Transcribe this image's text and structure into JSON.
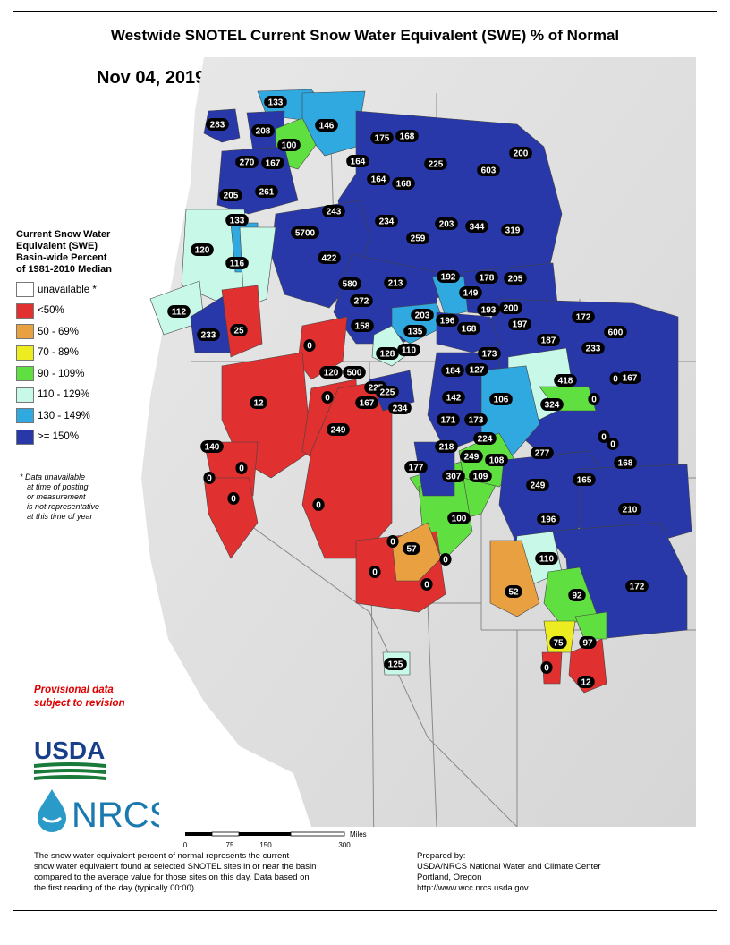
{
  "title": "Westwide SNOTEL Current Snow Water Equivalent (SWE) % of Normal",
  "date": "Nov 04, 2019",
  "legend": {
    "title_lines": [
      "Current Snow Water",
      "Equivalent (SWE)",
      "Basin-wide Percent",
      "of 1981-2010 Median"
    ],
    "items": [
      {
        "label": "unavailable *",
        "color": "#ffffff"
      },
      {
        "label": "<50%",
        "color": "#e03030"
      },
      {
        "label": "50 - 69%",
        "color": "#e8a040"
      },
      {
        "label": "70 - 89%",
        "color": "#ecec20"
      },
      {
        "label": "90 - 109%",
        "color": "#60e040"
      },
      {
        "label": "110 - 129%",
        "color": "#c8f8e8"
      },
      {
        "label": "130 - 149%",
        "color": "#30a8e0"
      },
      {
        "label": ">= 150%",
        "color": "#2838a8"
      }
    ]
  },
  "note_lines": [
    "*  Data unavailable",
    "at time of posting",
    "or measurement",
    "is not representative",
    "at this time of year"
  ],
  "provisional_lines": [
    "Provisional data",
    "subject to revision"
  ],
  "logos": {
    "usda": "USDA",
    "nrcs": "NRCS"
  },
  "scale": {
    "unit": "Miles",
    "ticks": [
      "0",
      "75",
      "150",
      "300"
    ]
  },
  "footnote_lines": [
    "The snow water equivalent percent of normal represents the current",
    "snow water equivalent found at selected SNOTEL sites in or near the basin",
    "compared to the average value for those sites on this day. Data based on",
    "the first reading of the day (typically 00:00)."
  ],
  "prepared_lines": [
    "Prepared by:",
    "USDA/NRCS National Water and Climate Center",
    "Portland, Oregon",
    "http://www.wcc.nrcs.usda.gov"
  ],
  "basins": [
    {
      "value": "283",
      "cls": 7
    },
    {
      "value": "133",
      "cls": 6
    },
    {
      "value": "146",
      "cls": 6
    },
    {
      "value": "208",
      "cls": 7
    },
    {
      "value": "100",
      "cls": 4
    },
    {
      "value": "175",
      "cls": 7
    },
    {
      "value": "168",
      "cls": 7
    },
    {
      "value": "270",
      "cls": 7
    },
    {
      "value": "167",
      "cls": 7
    },
    {
      "value": "164",
      "cls": 7
    },
    {
      "value": "225",
      "cls": 7
    },
    {
      "value": "603",
      "cls": 7
    },
    {
      "value": "200",
      "cls": 7
    },
    {
      "value": "205",
      "cls": 7
    },
    {
      "value": "261",
      "cls": 7
    },
    {
      "value": "164",
      "cls": 7
    },
    {
      "value": "168",
      "cls": 7
    },
    {
      "value": "133",
      "cls": 6
    },
    {
      "value": "243",
      "cls": 7
    },
    {
      "value": "234",
      "cls": 7
    },
    {
      "value": "203",
      "cls": 7
    },
    {
      "value": "344",
      "cls": 7
    },
    {
      "value": "319",
      "cls": 7
    },
    {
      "value": "120",
      "cls": 5
    },
    {
      "value": "5700",
      "cls": 7
    },
    {
      "value": "259",
      "cls": 7
    },
    {
      "value": "116",
      "cls": 5
    },
    {
      "value": "422",
      "cls": 7
    },
    {
      "value": "192",
      "cls": 7
    },
    {
      "value": "178",
      "cls": 7
    },
    {
      "value": "205",
      "cls": 7
    },
    {
      "value": "580",
      "cls": 7
    },
    {
      "value": "213",
      "cls": 7
    },
    {
      "value": "149",
      "cls": 6
    },
    {
      "value": "272",
      "cls": 7
    },
    {
      "value": "200",
      "cls": 7
    },
    {
      "value": "193",
      "cls": 7
    },
    {
      "value": "112",
      "cls": 5
    },
    {
      "value": "203",
      "cls": 7
    },
    {
      "value": "196",
      "cls": 7
    },
    {
      "value": "197",
      "cls": 7
    },
    {
      "value": "172",
      "cls": 7
    },
    {
      "value": "158",
      "cls": 7
    },
    {
      "value": "233",
      "cls": 7
    },
    {
      "value": "25",
      "cls": 1
    },
    {
      "value": "135",
      "cls": 6
    },
    {
      "value": "168",
      "cls": 7
    },
    {
      "value": "187",
      "cls": 7
    },
    {
      "value": "600",
      "cls": 7
    },
    {
      "value": "0",
      "cls": 1
    },
    {
      "value": "128",
      "cls": 5
    },
    {
      "value": "110",
      "cls": 5
    },
    {
      "value": "173",
      "cls": 7
    },
    {
      "value": "233",
      "cls": 7
    },
    {
      "value": "0",
      "cls": 1
    },
    {
      "value": "120",
      "cls": 5
    },
    {
      "value": "500",
      "cls": 7
    },
    {
      "value": "184",
      "cls": 7
    },
    {
      "value": "127",
      "cls": 5
    },
    {
      "value": "418",
      "cls": 7
    },
    {
      "value": "167",
      "cls": 7
    },
    {
      "value": "225",
      "cls": 7
    },
    {
      "value": "12",
      "cls": 1
    },
    {
      "value": "0",
      "cls": 1
    },
    {
      "value": "167",
      "cls": 7
    },
    {
      "value": "225",
      "cls": 7
    },
    {
      "value": "234",
      "cls": 7
    },
    {
      "value": "142",
      "cls": 6
    },
    {
      "value": "106",
      "cls": 4
    },
    {
      "value": "324",
      "cls": 7
    },
    {
      "value": "0",
      "cls": 1
    },
    {
      "value": "249",
      "cls": 7
    },
    {
      "value": "171",
      "cls": 7
    },
    {
      "value": "173",
      "cls": 7
    },
    {
      "value": "0",
      "cls": 1
    },
    {
      "value": "140",
      "cls": 6
    },
    {
      "value": "224",
      "cls": 7
    },
    {
      "value": "0",
      "cls": 1
    },
    {
      "value": "218",
      "cls": 7
    },
    {
      "value": "277",
      "cls": 7
    },
    {
      "value": "0",
      "cls": 1
    },
    {
      "value": "0",
      "cls": 1
    },
    {
      "value": "249",
      "cls": 7
    },
    {
      "value": "108",
      "cls": 4
    },
    {
      "value": "168",
      "cls": 7
    },
    {
      "value": "177",
      "cls": 7
    },
    {
      "value": "307",
      "cls": 7
    },
    {
      "value": "109",
      "cls": 4
    },
    {
      "value": "165",
      "cls": 7
    },
    {
      "value": "0",
      "cls": 1
    },
    {
      "value": "249",
      "cls": 7
    },
    {
      "value": "0",
      "cls": 1
    },
    {
      "value": "210",
      "cls": 7
    },
    {
      "value": "100",
      "cls": 4
    },
    {
      "value": "196",
      "cls": 7
    },
    {
      "value": "0",
      "cls": 1
    },
    {
      "value": "57",
      "cls": 2
    },
    {
      "value": "0",
      "cls": 1
    },
    {
      "value": "110",
      "cls": 5
    },
    {
      "value": "0",
      "cls": 1
    },
    {
      "value": "0",
      "cls": 1
    },
    {
      "value": "52",
      "cls": 2
    },
    {
      "value": "92",
      "cls": 4
    },
    {
      "value": "172",
      "cls": 7
    },
    {
      "value": "75",
      "cls": 3
    },
    {
      "value": "97",
      "cls": 4
    },
    {
      "value": "0",
      "cls": 1
    },
    {
      "value": "125",
      "cls": 5
    },
    {
      "value": "12",
      "cls": 1
    }
  ]
}
